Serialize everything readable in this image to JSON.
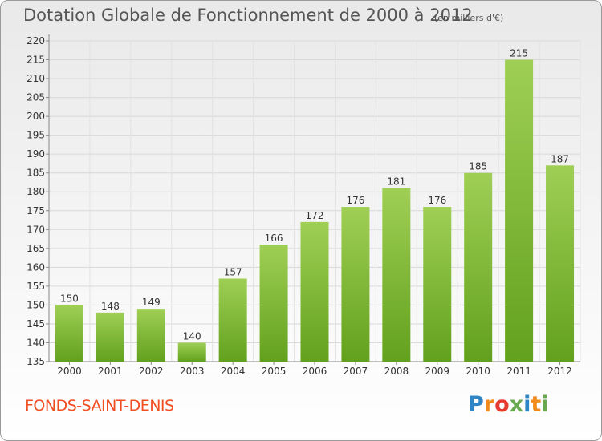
{
  "header": {
    "title": "Dotation Globale de Fonctionnement de 2000 à 2012",
    "subtitle": "(en milliers d'€)"
  },
  "footer": {
    "commune": "FONDS-SAINT-DENIS",
    "logo_text": "Proxiti",
    "logo_letters": [
      {
        "ch": "P",
        "color": "#2f86c6"
      },
      {
        "ch": "r",
        "color": "#f08a1c"
      },
      {
        "ch": "o",
        "color": "#e63a2e"
      },
      {
        "ch": "x",
        "color": "#6aa84f"
      },
      {
        "ch": "i",
        "color": "#2f86c6"
      },
      {
        "ch": "t",
        "color": "#f08a1c"
      },
      {
        "ch": "i",
        "color": "#6aa84f"
      }
    ]
  },
  "chart_data": {
    "type": "bar",
    "categories": [
      "2000",
      "2001",
      "2002",
      "2003",
      "2004",
      "2005",
      "2006",
      "2007",
      "2008",
      "2009",
      "2010",
      "2011",
      "2012"
    ],
    "values": [
      150,
      148,
      149,
      140,
      157,
      166,
      172,
      176,
      181,
      176,
      185,
      215,
      187
    ],
    "ylim": [
      135,
      220
    ],
    "yticks": [
      135,
      140,
      145,
      150,
      155,
      160,
      165,
      170,
      175,
      180,
      185,
      190,
      195,
      200,
      205,
      210,
      215,
      220
    ],
    "grid": true,
    "legend": "none",
    "bar_color_top": "#9fcf55",
    "bar_color_bottom": "#62a11d"
  }
}
